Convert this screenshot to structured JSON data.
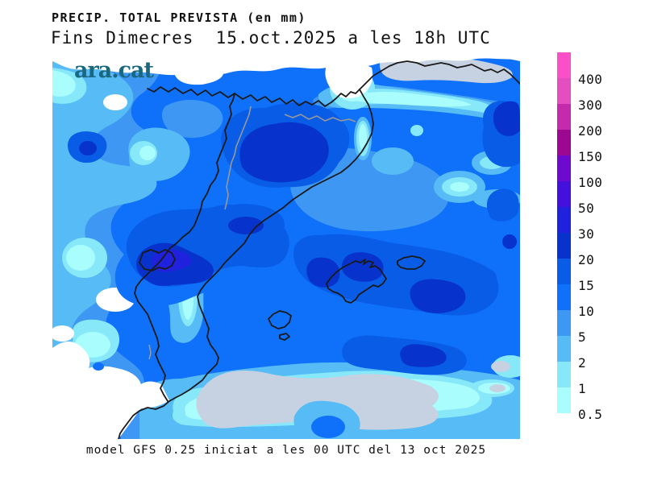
{
  "titles": {
    "line1": "PRECIP. TOTAL PREVISTA (en mm)",
    "line2": "Fins Dimecres  15.oct.2025 a les 18h UTC"
  },
  "logo": {
    "text": "ara.cat",
    "color": "#1A6880"
  },
  "caption": "model GFS 0.25 iniciat a les 00 UTC del 13 oct 2025",
  "legend": {
    "boundary_labels": [
      "400",
      "300",
      "200",
      "150",
      "100",
      "50",
      "30",
      "20",
      "15",
      "10",
      "5",
      "2",
      "1",
      "0.5"
    ],
    "segment_colors_top_to_bottom": [
      "#FB4FC8",
      "#E34FBE",
      "#C62AAC",
      "#9D0890",
      "#6E0ACF",
      "#4410DC",
      "#2021DC",
      "#0733CC",
      "#085CE6",
      "#0F70FA",
      "#3E97F2",
      "#57BBF5",
      "#87E8FA",
      "#A9FDFC"
    ],
    "units": "mm"
  },
  "map_data": {
    "type": "filled-contour precipitation map",
    "region": "Catalonia, Valencia, Aragon, Balearic Islands, southern France, western Mediterranean",
    "palette": {
      "30-50": "#2021DC",
      "20-30": "#0733CC",
      "15-20": "#085CE6",
      "10-15": "#0F70FA",
      "5-10": "#3E97F2",
      "2-5": "#57BBF5",
      "1-2": "#87E8FA",
      "0.5-1": "#A9FDFC",
      "below-0.5": "#C6D2E2",
      "zero": "#FFFFFF",
      "coast-border": "#1a1a1a",
      "province-border": "#999999"
    },
    "features": [
      "heavy precipitation core 20-30mm over central Catalonia",
      "heavy diagonal band 20-30mm (locally 30-50mm) over Teruel / interior Castello with Rincon de Ademuz enclave outline",
      "20-30mm patches around Mallorca, Menorca and NE corner of map",
      "dry (below 0.5mm) gray zone over sea south of Valencia and over inland southern France",
      "zero-precipitation white zone over Murcia in the bottom-left"
    ]
  }
}
